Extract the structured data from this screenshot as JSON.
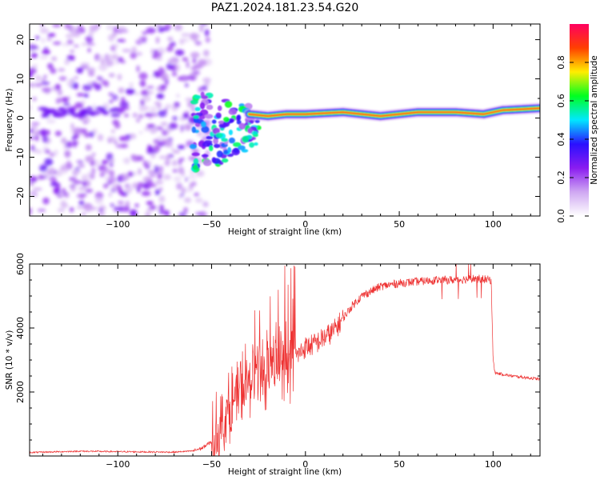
{
  "title": "PAZ1.2024.181.23.54.G20",
  "chart_data": [
    {
      "type": "heatmap",
      "xlabel": "Height of straight line (km)",
      "ylabel": "Frequency (Hz)",
      "xlim": [
        -147,
        125
      ],
      "ylim": [
        -25,
        24
      ],
      "x_ticks": [
        -100,
        -50,
        0,
        50,
        100
      ],
      "y_ticks": [
        -20,
        -10,
        0,
        10,
        20
      ],
      "colorbar": {
        "label": "Normalized spectral amplitude",
        "range": [
          0,
          1
        ],
        "ticks": [
          "0.0",
          "0.2",
          "0.4",
          "0.6",
          "0.8"
        ],
        "colormap": [
          "#ffffff",
          "#cfa8f2",
          "#8a1cf0",
          "#2a10ff",
          "#00e8ff",
          "#00ff20",
          "#ffee00",
          "#ff4000",
          "#ff0060"
        ]
      },
      "regions": [
        {
          "name": "diffuse noise speckle",
          "x_range": [
            -147,
            -60
          ],
          "freq_range": [
            -25,
            24
          ],
          "amplitude": 0.1
        },
        {
          "name": "scattered transition blobs",
          "x_range": [
            -60,
            -25
          ],
          "freq_range": [
            -15,
            9
          ],
          "amplitude": 0.3
        },
        {
          "name": "carrier tone",
          "x_range": [
            -25,
            125
          ],
          "freq_range": [
            0,
            2.5
          ],
          "amplitude": 0.9
        }
      ],
      "carrier_line": {
        "x": [
          -30,
          -20,
          -10,
          0,
          20,
          40,
          60,
          80,
          95,
          105,
          125
        ],
        "freq": [
          1,
          0.5,
          1,
          1,
          1.5,
          0.5,
          1.5,
          1.5,
          1,
          2,
          2.5
        ]
      }
    },
    {
      "type": "line",
      "xlabel": "Height of straight line (km)",
      "ylabel": "SNR (10 * v/v)",
      "xlim": [
        -147,
        125
      ],
      "ylim": [
        0,
        6000
      ],
      "x_ticks": [
        -100,
        -50,
        0,
        50,
        100
      ],
      "y_ticks": [
        2000,
        4000,
        6000
      ],
      "color": "#ee3333",
      "series": [
        {
          "x": [
            -147,
            -120,
            -90,
            -70,
            -60,
            -55,
            -50,
            -45,
            -40,
            -35,
            -30,
            -25,
            -20,
            -15,
            -10,
            -5,
            0,
            5,
            10,
            15,
            20,
            25,
            30,
            40,
            50,
            60,
            70,
            80,
            90,
            99,
            100,
            101,
            110,
            125
          ],
          "values": [
            110,
            150,
            130,
            120,
            160,
            250,
            450,
            900,
            1500,
            2000,
            2300,
            2600,
            2800,
            2900,
            3000,
            3100,
            3400,
            3500,
            3700,
            3900,
            4300,
            4700,
            5000,
            5300,
            5400,
            5450,
            5500,
            5500,
            5550,
            5500,
            3000,
            2600,
            2500,
            2400
          ]
        }
      ]
    }
  ]
}
